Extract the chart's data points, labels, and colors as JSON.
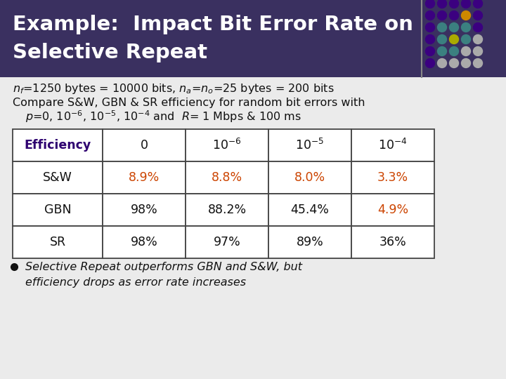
{
  "title_line1": "Example:  Impact Bit Error Rate on",
  "title_line2": "Selective Repeat",
  "title_color": "#2E0070",
  "slide_bg": "#EBEBEB",
  "title_bg": "#3A3060",
  "desc_line2": "Compare S&W, GBN & SR efficiency for random bit errors with",
  "table_headers": [
    "Efficiency",
    "0",
    "10$^{-6}$",
    "10$^{-5}$",
    "10$^{-4}$"
  ],
  "table_rows": [
    [
      "S&W",
      "8.9%",
      "8.8%",
      "8.0%",
      "3.3%"
    ],
    [
      "GBN",
      "98%",
      "88.2%",
      "45.4%",
      "4.9%"
    ],
    [
      "SR",
      "98%",
      "97%",
      "89%",
      "36%"
    ]
  ],
  "orange_cells": [
    [
      0,
      1
    ],
    [
      0,
      2
    ],
    [
      0,
      3
    ],
    [
      0,
      4
    ],
    [
      1,
      4
    ]
  ],
  "orange_color": "#CC4400",
  "header_color": "#2E0070",
  "table_border_color": "#444444",
  "bullet_text_line1": "Selective Repeat outperforms GBN and S&W, but",
  "bullet_text_line2": "efficiency drops as error rate increases",
  "dot_grid": {
    "rows": 6,
    "cols": 5,
    "colors": [
      [
        "#3B0080",
        "#3B0080",
        "#3B0080",
        "#3B0080",
        "#3B0080"
      ],
      [
        "#3B0080",
        "#3B0080",
        "#3B0080",
        "#CC8800",
        "#3B0080"
      ],
      [
        "#3B0080",
        "#3B8080",
        "#3B8080",
        "#3B8080",
        "#3B0080"
      ],
      [
        "#3B0080",
        "#3B8080",
        "#AAAA00",
        "#3B8080",
        "#AAAAAA"
      ],
      [
        "#3B0080",
        "#3B8080",
        "#3B8080",
        "#AAAAAA",
        "#AAAAAA"
      ],
      [
        "#3B0080",
        "#AAAAAA",
        "#AAAAAA",
        "#AAAAAA",
        "#AAAAAA"
      ]
    ]
  }
}
